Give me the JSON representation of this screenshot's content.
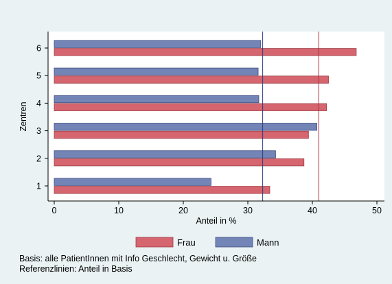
{
  "chart_data": {
    "type": "bar",
    "orientation": "horizontal",
    "categories": [
      "1",
      "2",
      "3",
      "4",
      "5",
      "6"
    ],
    "series": [
      {
        "name": "Mann",
        "color": "#7384b6",
        "values": [
          24.3,
          34.3,
          40.7,
          31.7,
          31.6,
          32.0
        ]
      },
      {
        "name": "Frau",
        "color": "#d5666f",
        "values": [
          33.4,
          38.7,
          39.4,
          42.2,
          42.5,
          46.8
        ]
      }
    ],
    "xlabel": "Anteil in %",
    "ylabel": "Zentren",
    "xlim": [
      0,
      50
    ],
    "xticks": [
      0,
      10,
      20,
      30,
      40,
      50
    ],
    "grid": false,
    "legend_position": "bottom",
    "legend_order": [
      "Frau",
      "Mann"
    ],
    "reference_lines": [
      {
        "series": "Mann",
        "value": 32.3,
        "color": "#2d3a80"
      },
      {
        "series": "Frau",
        "value": 41.0,
        "color": "#a8313f"
      }
    ]
  },
  "notes": {
    "line1": "Basis: alle PatientInnen mit Info Geschlecht, Gewicht u. Größe",
    "line2": "Referenzlinien: Anteil in Basis"
  }
}
